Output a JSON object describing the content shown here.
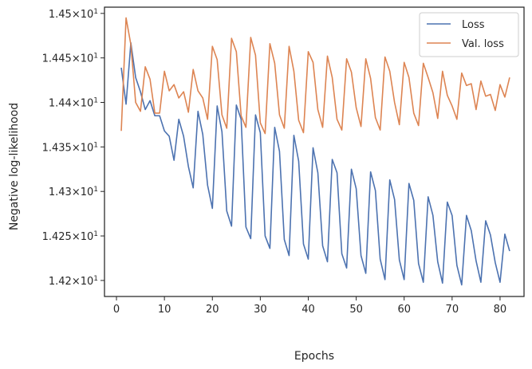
{
  "chart_data": {
    "type": "line",
    "xlabel": "Epochs",
    "ylabel": "Negative log-likelihood",
    "xlim": [
      -2.5,
      85
    ],
    "ylim": [
      14.182,
      14.507
    ],
    "x_ticks": [
      0,
      10,
      20,
      30,
      40,
      50,
      60,
      70,
      80
    ],
    "x_tick_labels": [
      "0",
      "10",
      "20",
      "30",
      "40",
      "50",
      "60",
      "70",
      "80"
    ],
    "y_ticks": [
      14.2,
      14.25,
      14.3,
      14.35,
      14.4,
      14.45,
      14.5
    ],
    "y_tick_mantissas": [
      "1.42",
      "1.425",
      "1.43",
      "1.435",
      "1.44",
      "1.445",
      "1.45"
    ],
    "y_tick_base": "×10",
    "y_tick_exponent": "1",
    "grid": false,
    "legend_position": "upper-right",
    "colors": {
      "Loss": "#4c72b0",
      "Val. loss": "#dd8452",
      "axes": "#262626"
    },
    "x": [
      1,
      2,
      3,
      4,
      5,
      6,
      7,
      8,
      9,
      10,
      11,
      12,
      13,
      14,
      15,
      16,
      17,
      18,
      19,
      20,
      21,
      22,
      23,
      24,
      25,
      26,
      27,
      28,
      29,
      30,
      31,
      32,
      33,
      34,
      35,
      36,
      37,
      38,
      39,
      40,
      41,
      42,
      43,
      44,
      45,
      46,
      47,
      48,
      49,
      50,
      51,
      52,
      53,
      54,
      55,
      56,
      57,
      58,
      59,
      60,
      61,
      62,
      63,
      64,
      65,
      66,
      67,
      68,
      69,
      70,
      71,
      72,
      73,
      74,
      75,
      76,
      77,
      78,
      79,
      80,
      81,
      82
    ],
    "series": [
      {
        "name": "Loss",
        "values": [
          14.439,
          14.398,
          14.467,
          14.428,
          14.412,
          14.392,
          14.402,
          14.385,
          14.385,
          14.368,
          14.362,
          14.335,
          14.381,
          14.362,
          14.328,
          14.304,
          14.39,
          14.364,
          14.307,
          14.281,
          14.396,
          14.367,
          14.278,
          14.261,
          14.397,
          14.381,
          14.26,
          14.247,
          14.386,
          14.366,
          14.25,
          14.236,
          14.372,
          14.345,
          14.246,
          14.228,
          14.363,
          14.334,
          14.241,
          14.224,
          14.349,
          14.321,
          14.239,
          14.221,
          14.336,
          14.321,
          14.23,
          14.214,
          14.325,
          14.303,
          14.228,
          14.208,
          14.322,
          14.301,
          14.224,
          14.201,
          14.313,
          14.291,
          14.223,
          14.201,
          14.309,
          14.29,
          14.219,
          14.198,
          14.294,
          14.273,
          14.221,
          14.197,
          14.288,
          14.273,
          14.217,
          14.195,
          14.273,
          14.256,
          14.222,
          14.198,
          14.267,
          14.251,
          14.22,
          14.198,
          14.252,
          14.233
        ]
      },
      {
        "name": "Val. loss",
        "values": [
          14.368,
          14.495,
          14.465,
          14.4,
          14.39,
          14.44,
          14.426,
          14.388,
          14.388,
          14.435,
          14.413,
          14.42,
          14.405,
          14.412,
          14.389,
          14.437,
          14.413,
          14.405,
          14.381,
          14.463,
          14.448,
          14.386,
          14.371,
          14.472,
          14.457,
          14.385,
          14.372,
          14.473,
          14.453,
          14.377,
          14.365,
          14.466,
          14.444,
          14.386,
          14.371,
          14.463,
          14.435,
          14.38,
          14.366,
          14.457,
          14.445,
          14.392,
          14.372,
          14.452,
          14.428,
          14.381,
          14.369,
          14.449,
          14.434,
          14.394,
          14.373,
          14.449,
          14.427,
          14.383,
          14.369,
          14.451,
          14.435,
          14.4,
          14.375,
          14.445,
          14.428,
          14.388,
          14.374,
          14.444,
          14.428,
          14.411,
          14.382,
          14.435,
          14.408,
          14.396,
          14.381,
          14.433,
          14.419,
          14.421,
          14.392,
          14.424,
          14.407,
          14.409,
          14.391,
          14.42,
          14.406,
          14.428
        ]
      }
    ]
  }
}
